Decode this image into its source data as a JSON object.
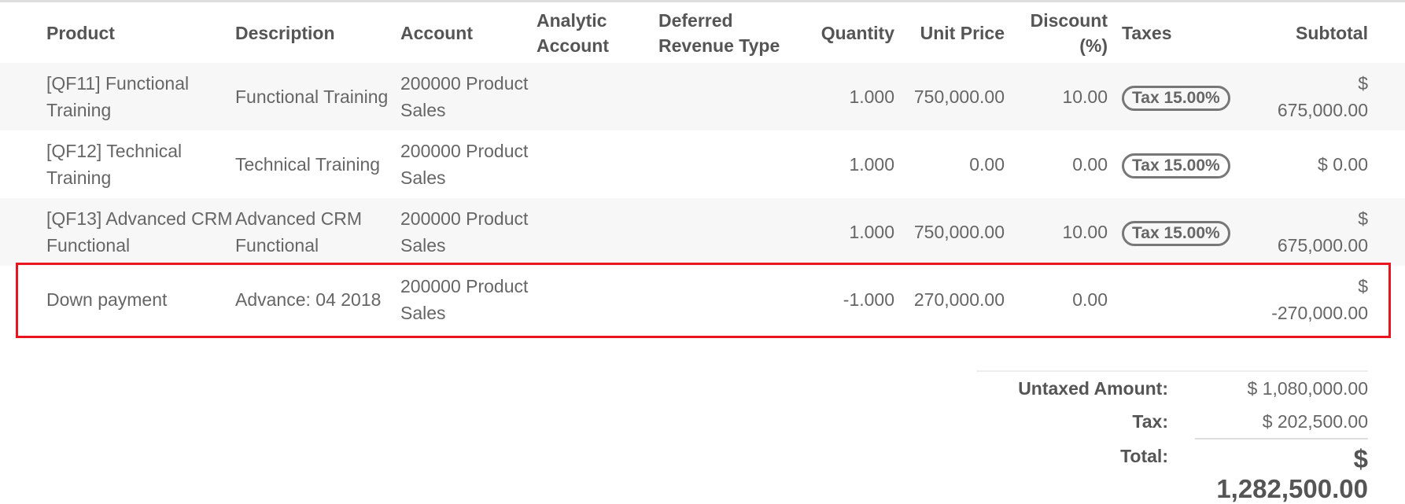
{
  "columns": {
    "product": "Product",
    "description": "Description",
    "account": "Account",
    "analytic": "Analytic Account",
    "deferred": "Deferred Revenue Type",
    "quantity": "Quantity",
    "unit_price": "Unit Price",
    "discount": "Discount (%)",
    "taxes": "Taxes",
    "subtotal": "Subtotal"
  },
  "lines": [
    {
      "product": "[QF11] Functional Training",
      "description": "Functional Training",
      "account": "200000 Product Sales",
      "analytic": "",
      "deferred": "",
      "quantity": "1.000",
      "unit_price": "750,000.00",
      "discount": "10.00",
      "taxes": "Tax 15.00%",
      "subtotal": "$ 675,000.00"
    },
    {
      "product": "[QF12] Technical Training",
      "description": "Technical Training",
      "account": "200000 Product Sales",
      "analytic": "",
      "deferred": "",
      "quantity": "1.000",
      "unit_price": "0.00",
      "discount": "0.00",
      "taxes": "Tax 15.00%",
      "subtotal": "$ 0.00"
    },
    {
      "product": "[QF13] Advanced CRM Functional",
      "description": "Advanced CRM Functional",
      "account": "200000 Product Sales",
      "analytic": "",
      "deferred": "",
      "quantity": "1.000",
      "unit_price": "750,000.00",
      "discount": "10.00",
      "taxes": "Tax 15.00%",
      "subtotal": "$ 675,000.00"
    },
    {
      "product": "Down payment",
      "description": "Advance: 04 2018",
      "account": "200000 Product Sales",
      "analytic": "",
      "deferred": "",
      "quantity": "-1.000",
      "unit_price": "270,000.00",
      "discount": "0.00",
      "taxes": "",
      "subtotal": "$ -270,000.00"
    }
  ],
  "highlight_color": "#e8141e",
  "totals": {
    "untaxed_label": "Untaxed Amount:",
    "untaxed": "$ 1,080,000.00",
    "tax_label": "Tax:",
    "tax": "$ 202,500.00",
    "total_label": "Total:",
    "total": "$ 1,282,500.00"
  }
}
